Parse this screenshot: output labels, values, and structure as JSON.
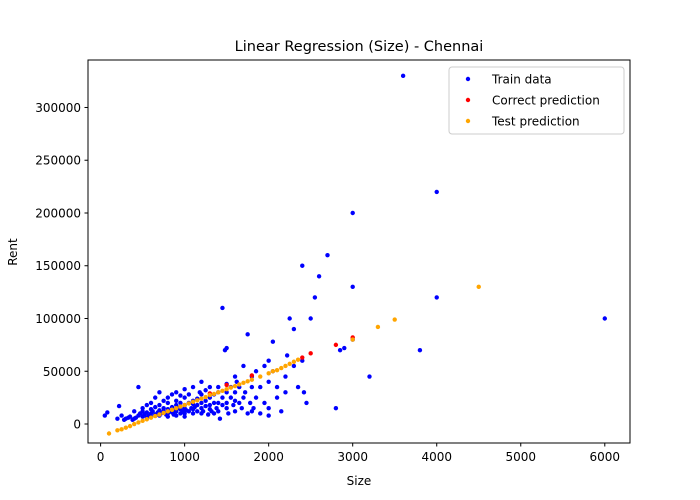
{
  "chart_data": {
    "type": "scatter",
    "title": "Linear Regression (Size) - Chennai",
    "xlabel": "Size",
    "ylabel": "Rent",
    "xlim": [
      -150,
      6300
    ],
    "ylim": [
      -18000,
      345000
    ],
    "xticks": [
      0,
      1000,
      2000,
      3000,
      4000,
      5000,
      6000
    ],
    "yticks": [
      0,
      50000,
      100000,
      150000,
      200000,
      250000,
      300000
    ],
    "xtick_labels": [
      "0",
      "1000",
      "2000",
      "3000",
      "4000",
      "5000",
      "6000"
    ],
    "ytick_labels": [
      "0",
      "50000",
      "100000",
      "150000",
      "200000",
      "250000",
      "300000"
    ],
    "grid": false,
    "legend_position": "top-right",
    "series": [
      {
        "name": "Train data",
        "color": "#0000ff",
        "points": [
          [
            50,
            8000
          ],
          [
            80,
            11000
          ],
          [
            200,
            5000
          ],
          [
            220,
            17000
          ],
          [
            250,
            8000
          ],
          [
            280,
            4000
          ],
          [
            300,
            5000
          ],
          [
            330,
            6000
          ],
          [
            350,
            7000
          ],
          [
            380,
            4000
          ],
          [
            400,
            5000
          ],
          [
            400,
            12000
          ],
          [
            420,
            6000
          ],
          [
            450,
            35000
          ],
          [
            450,
            8000
          ],
          [
            470,
            10000
          ],
          [
            500,
            7000
          ],
          [
            500,
            12000
          ],
          [
            500,
            15000
          ],
          [
            520,
            9000
          ],
          [
            550,
            6000
          ],
          [
            550,
            18000
          ],
          [
            550,
            11000
          ],
          [
            570,
            8000
          ],
          [
            600,
            10000
          ],
          [
            600,
            14000
          ],
          [
            600,
            20000
          ],
          [
            600,
            7000
          ],
          [
            620,
            12000
          ],
          [
            650,
            9000
          ],
          [
            650,
            16000
          ],
          [
            650,
            25000
          ],
          [
            680,
            11000
          ],
          [
            700,
            8000
          ],
          [
            700,
            13000
          ],
          [
            700,
            18000
          ],
          [
            700,
            30000
          ],
          [
            720,
            10000
          ],
          [
            750,
            12000
          ],
          [
            750,
            15000
          ],
          [
            750,
            22000
          ],
          [
            780,
            9000
          ],
          [
            800,
            10000
          ],
          [
            800,
            14000
          ],
          [
            800,
            20000
          ],
          [
            800,
            25000
          ],
          [
            800,
            7000
          ],
          [
            820,
            12000
          ],
          [
            850,
            11000
          ],
          [
            850,
            16000
          ],
          [
            850,
            28000
          ],
          [
            870,
            9000
          ],
          [
            880,
            13000
          ],
          [
            900,
            12000
          ],
          [
            900,
            18000
          ],
          [
            900,
            22000
          ],
          [
            900,
            30000
          ],
          [
            900,
            8000
          ],
          [
            920,
            15000
          ],
          [
            950,
            10000
          ],
          [
            950,
            14000
          ],
          [
            950,
            20000
          ],
          [
            950,
            27000
          ],
          [
            980,
            12000
          ],
          [
            1000,
            10000
          ],
          [
            1000,
            15000
          ],
          [
            1000,
            18000
          ],
          [
            1000,
            25000
          ],
          [
            1000,
            33000
          ],
          [
            1000,
            7000
          ],
          [
            1020,
            13000
          ],
          [
            1050,
            12000
          ],
          [
            1050,
            20000
          ],
          [
            1050,
            28000
          ],
          [
            1080,
            15000
          ],
          [
            1100,
            10000
          ],
          [
            1100,
            14000
          ],
          [
            1100,
            22000
          ],
          [
            1100,
            35000
          ],
          [
            1100,
            19000
          ],
          [
            1120,
            16000
          ],
          [
            1150,
            12000
          ],
          [
            1150,
            18000
          ],
          [
            1150,
            24000
          ],
          [
            1180,
            30000
          ],
          [
            1200,
            10000
          ],
          [
            1200,
            15000
          ],
          [
            1200,
            20000
          ],
          [
            1200,
            28000
          ],
          [
            1200,
            40000
          ],
          [
            1220,
            12000
          ],
          [
            1250,
            17000
          ],
          [
            1250,
            22000
          ],
          [
            1250,
            32000
          ],
          [
            1280,
            9000
          ],
          [
            1300,
            14000
          ],
          [
            1300,
            18000
          ],
          [
            1300,
            25000
          ],
          [
            1300,
            35000
          ],
          [
            1320,
            12000
          ],
          [
            1350,
            20000
          ],
          [
            1350,
            28000
          ],
          [
            1350,
            10000
          ],
          [
            1380,
            15000
          ],
          [
            1400,
            12000
          ],
          [
            1400,
            20000
          ],
          [
            1400,
            30000
          ],
          [
            1400,
            35000
          ],
          [
            1420,
            5000
          ],
          [
            1450,
            110000
          ],
          [
            1450,
            18000
          ],
          [
            1450,
            25000
          ],
          [
            1480,
            70000
          ],
          [
            1500,
            15000
          ],
          [
            1500,
            20000
          ],
          [
            1500,
            30000
          ],
          [
            1500,
            38000
          ],
          [
            1500,
            72000
          ],
          [
            1520,
            10000
          ],
          [
            1550,
            25000
          ],
          [
            1550,
            35000
          ],
          [
            1580,
            18000
          ],
          [
            1600,
            12000
          ],
          [
            1600,
            22000
          ],
          [
            1600,
            30000
          ],
          [
            1600,
            45000
          ],
          [
            1620,
            40000
          ],
          [
            1650,
            20000
          ],
          [
            1650,
            35000
          ],
          [
            1680,
            15000
          ],
          [
            1700,
            25000
          ],
          [
            1700,
            55000
          ],
          [
            1720,
            30000
          ],
          [
            1750,
            85000
          ],
          [
            1750,
            10000
          ],
          [
            1780,
            20000
          ],
          [
            1800,
            12000
          ],
          [
            1800,
            35000
          ],
          [
            1800,
            45000
          ],
          [
            1820,
            15000
          ],
          [
            1850,
            50000
          ],
          [
            1850,
            25000
          ],
          [
            1900,
            10000
          ],
          [
            1900,
            35000
          ],
          [
            1950,
            55000
          ],
          [
            1950,
            20000
          ],
          [
            2000,
            8000
          ],
          [
            2000,
            40000
          ],
          [
            2000,
            60000
          ],
          [
            2000,
            15000
          ],
          [
            2050,
            78000
          ],
          [
            2050,
            50000
          ],
          [
            2100,
            35000
          ],
          [
            2100,
            25000
          ],
          [
            2150,
            12000
          ],
          [
            2200,
            45000
          ],
          [
            2200,
            30000
          ],
          [
            2220,
            65000
          ],
          [
            2250,
            100000
          ],
          [
            2300,
            90000
          ],
          [
            2300,
            55000
          ],
          [
            2350,
            35000
          ],
          [
            2400,
            150000
          ],
          [
            2400,
            60000
          ],
          [
            2420,
            30000
          ],
          [
            2450,
            20000
          ],
          [
            2500,
            100000
          ],
          [
            2550,
            120000
          ],
          [
            2600,
            140000
          ],
          [
            2700,
            160000
          ],
          [
            2800,
            15000
          ],
          [
            2850,
            70000
          ],
          [
            2900,
            72000
          ],
          [
            3000,
            200000
          ],
          [
            3000,
            130000
          ],
          [
            3000,
            80000
          ],
          [
            3200,
            45000
          ],
          [
            3600,
            330000
          ],
          [
            3800,
            70000
          ],
          [
            4000,
            220000
          ],
          [
            4000,
            120000
          ],
          [
            6000,
            100000
          ]
        ]
      },
      {
        "name": "Correct prediction",
        "color": "#ff0000",
        "points": [
          [
            1300,
            29000
          ],
          [
            1500,
            37000
          ],
          [
            1800,
            46000
          ],
          [
            2400,
            63000
          ],
          [
            2500,
            67000
          ],
          [
            2800,
            75000
          ],
          [
            3000,
            82000
          ]
        ]
      },
      {
        "name": "Test prediction",
        "color": "#ffa500",
        "points": [
          [
            100,
            -9000
          ],
          [
            200,
            -6000
          ],
          [
            250,
            -5000
          ],
          [
            300,
            -3500
          ],
          [
            350,
            -2000
          ],
          [
            400,
            0
          ],
          [
            450,
            1500
          ],
          [
            500,
            3000
          ],
          [
            550,
            4500
          ],
          [
            600,
            6000
          ],
          [
            650,
            7500
          ],
          [
            700,
            9000
          ],
          [
            750,
            10500
          ],
          [
            800,
            12000
          ],
          [
            850,
            13500
          ],
          [
            900,
            15000
          ],
          [
            950,
            16500
          ],
          [
            1000,
            18000
          ],
          [
            1050,
            19500
          ],
          [
            1100,
            21000
          ],
          [
            1150,
            22500
          ],
          [
            1200,
            24000
          ],
          [
            1250,
            25500
          ],
          [
            1300,
            27500
          ],
          [
            1350,
            28500
          ],
          [
            1400,
            30000
          ],
          [
            1450,
            31500
          ],
          [
            1500,
            33000
          ],
          [
            1550,
            34500
          ],
          [
            1600,
            36000
          ],
          [
            1650,
            37500
          ],
          [
            1700,
            39000
          ],
          [
            1750,
            40500
          ],
          [
            1800,
            42000
          ],
          [
            1900,
            45000
          ],
          [
            2000,
            48000
          ],
          [
            2050,
            50000
          ],
          [
            2100,
            51000
          ],
          [
            2150,
            53000
          ],
          [
            2200,
            55000
          ],
          [
            2250,
            57000
          ],
          [
            2300,
            59000
          ],
          [
            2350,
            61000
          ],
          [
            3000,
            80000
          ],
          [
            3300,
            92000
          ],
          [
            3500,
            99000
          ],
          [
            4500,
            130000
          ]
        ]
      }
    ]
  }
}
